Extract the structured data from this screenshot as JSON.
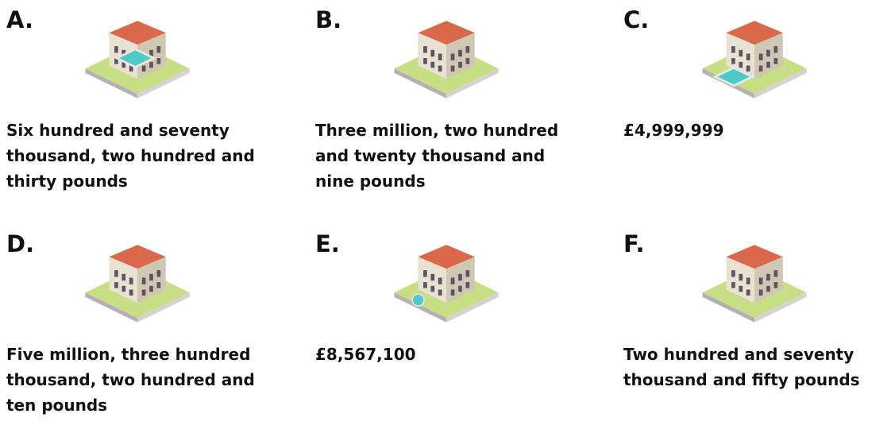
{
  "items": [
    {
      "letter": "A.",
      "text": "Six hundred and seventy thousand, two hundred and thirty pounds"
    },
    {
      "letter": "B.",
      "text": "Three million, two hundred and twenty thousand and nine pounds"
    },
    {
      "letter": "C.",
      "text": "£4,999,999"
    },
    {
      "letter": "D.",
      "text": "Five million, three hundred thousand, two hundred and ten pounds"
    },
    {
      "letter": "E.",
      "text": "£8,567,100"
    },
    {
      "letter": "F.",
      "text": "Two hundred and seventy thousand and fifty pounds"
    }
  ]
}
